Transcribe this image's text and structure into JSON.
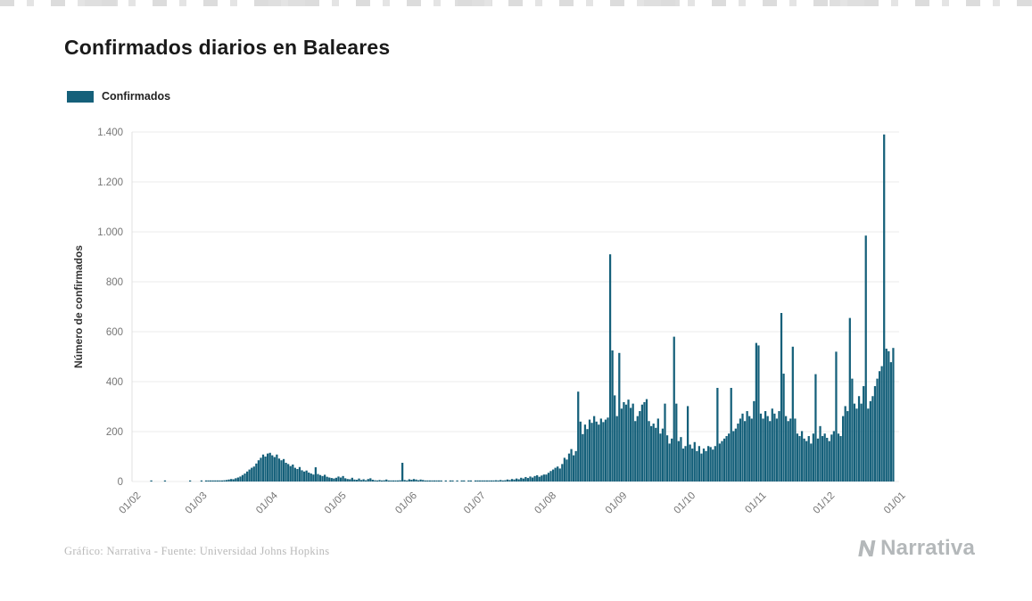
{
  "page": {
    "title": "Confirmados diarios en Baleares"
  },
  "legend": {
    "label": "Confirmados"
  },
  "chart_data": {
    "type": "bar",
    "title": "Confirmados diarios en Baleares",
    "series_name": "Confirmados",
    "xlabel": "",
    "ylabel": "Número de confirmados",
    "color": "#15607a",
    "grid": true,
    "legend_position": "top-left",
    "ylim": [
      0,
      1400
    ],
    "y_ticks": [
      0,
      200,
      400,
      600,
      800,
      1000,
      1200,
      1400
    ],
    "y_tick_labels": [
      "0",
      "200",
      "400",
      "600",
      "800",
      "1.000",
      "1.200",
      "1.400"
    ],
    "x_tick_labels": [
      "01/02",
      "01/03",
      "01/04",
      "01/05",
      "01/06",
      "01/07",
      "01/08",
      "01/09",
      "01/10",
      "01/11",
      "01/12",
      "01/01"
    ],
    "x_tick_days": [
      0,
      29,
      60,
      90,
      121,
      151,
      182,
      213,
      243,
      274,
      304,
      335
    ],
    "domain_days": 336,
    "values": [
      0,
      0,
      0,
      0,
      0,
      0,
      0,
      0,
      1,
      0,
      0,
      0,
      0,
      0,
      1,
      0,
      0,
      0,
      0,
      0,
      0,
      0,
      0,
      0,
      0,
      1,
      0,
      0,
      0,
      0,
      1,
      0,
      1,
      1,
      2,
      1,
      2,
      3,
      4,
      3,
      5,
      6,
      8,
      10,
      9,
      13,
      16,
      20,
      26,
      32,
      40,
      48,
      55,
      60,
      72,
      85,
      95,
      108,
      100,
      112,
      115,
      105,
      98,
      108,
      92,
      85,
      90,
      75,
      70,
      62,
      68,
      55,
      50,
      58,
      45,
      40,
      44,
      36,
      32,
      28,
      57,
      30,
      26,
      22,
      27,
      19,
      16,
      14,
      12,
      15,
      20,
      16,
      22,
      13,
      10,
      9,
      15,
      8,
      7,
      12,
      6,
      9,
      5,
      10,
      13,
      7,
      5,
      4,
      6,
      3,
      5,
      8,
      4,
      3,
      2,
      4,
      3,
      5,
      75,
      6,
      3,
      9,
      7,
      10,
      8,
      5,
      8,
      6,
      4,
      3,
      2,
      1,
      2,
      1,
      1,
      1,
      0,
      1,
      0,
      1,
      1,
      0,
      1,
      0,
      1,
      1,
      0,
      1,
      1,
      0,
      1,
      1,
      2,
      1,
      3,
      2,
      4,
      3,
      2,
      5,
      4,
      6,
      3,
      5,
      8,
      6,
      10,
      8,
      12,
      9,
      15,
      12,
      18,
      14,
      20,
      16,
      22,
      25,
      19,
      24,
      28,
      28,
      35,
      42,
      48,
      55,
      60,
      52,
      70,
      95,
      88,
      112,
      130,
      105,
      122,
      360,
      240,
      190,
      228,
      210,
      248,
      235,
      262,
      240,
      228,
      252,
      238,
      248,
      256,
      910,
      525,
      345,
      262,
      515,
      292,
      318,
      308,
      328,
      295,
      312,
      242,
      262,
      282,
      308,
      318,
      330,
      242,
      222,
      232,
      215,
      252,
      192,
      212,
      312,
      185,
      152,
      172,
      580,
      312,
      162,
      178,
      132,
      142,
      302,
      148,
      132,
      158,
      122,
      142,
      112,
      132,
      122,
      142,
      138,
      128,
      142,
      375,
      152,
      162,
      172,
      182,
      192,
      375,
      202,
      212,
      232,
      252,
      272,
      242,
      282,
      262,
      252,
      322,
      555,
      545,
      272,
      252,
      282,
      262,
      242,
      292,
      272,
      252,
      282,
      675,
      432,
      262,
      242,
      252,
      540,
      252,
      192,
      182,
      202,
      172,
      162,
      182,
      152,
      192,
      430,
      172,
      222,
      182,
      192,
      175,
      162,
      188,
      202,
      520,
      192,
      182,
      262,
      302,
      282,
      655,
      412,
      312,
      292,
      342,
      312,
      382,
      985,
      292,
      322,
      342,
      382,
      412,
      442,
      462,
      1390,
      532,
      522,
      478,
      535
    ]
  },
  "footer": {
    "credit": "Gráfico: Narrativa - Fuente: Universidad Johns Hopkins"
  },
  "logo": {
    "text": "Narrativa"
  }
}
